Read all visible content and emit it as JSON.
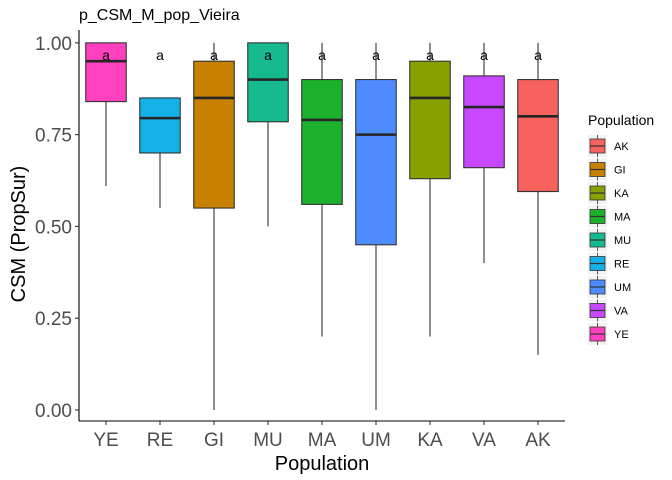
{
  "chart_data": {
    "type": "boxplot",
    "title": "p_CSM_M_pop_Vieira",
    "xlabel": "Population",
    "ylabel": "CSM (PropSur)",
    "ylim": [
      -0.03,
      1.035
    ],
    "yticks": [
      0.0,
      0.25,
      0.5,
      0.75,
      1.0
    ],
    "ytick_labels": [
      "0.00",
      "0.25",
      "0.50",
      "0.75",
      "1.00"
    ],
    "categories": [
      "YE",
      "RE",
      "GI",
      "MU",
      "MA",
      "UM",
      "KA",
      "VA",
      "AK"
    ],
    "boxes": [
      {
        "category": "YE",
        "min": 0.61,
        "q1": 0.84,
        "median": 0.95,
        "q3": 1.0,
        "max": 1.0,
        "color": "#FF40BF",
        "sig": "a"
      },
      {
        "category": "RE",
        "min": 0.55,
        "q1": 0.7,
        "median": 0.795,
        "q3": 0.85,
        "max": 0.85,
        "color": "#14B1E6",
        "sig": "a"
      },
      {
        "category": "GI",
        "min": 0.0,
        "q1": 0.55,
        "median": 0.85,
        "q3": 0.95,
        "max": 1.0,
        "color": "#C88000",
        "sig": "a"
      },
      {
        "category": "MU",
        "min": 0.5,
        "q1": 0.785,
        "median": 0.9,
        "q3": 1.0,
        "max": 1.0,
        "color": "#16BA8E",
        "sig": "a"
      },
      {
        "category": "MA",
        "min": 0.2,
        "q1": 0.56,
        "median": 0.79,
        "q3": 0.9,
        "max": 1.0,
        "color": "#1BB12D",
        "sig": "a"
      },
      {
        "category": "UM",
        "min": 0.0,
        "q1": 0.45,
        "median": 0.75,
        "q3": 0.9,
        "max": 1.0,
        "color": "#4E8BFF",
        "sig": "a"
      },
      {
        "category": "KA",
        "min": 0.2,
        "q1": 0.63,
        "median": 0.85,
        "q3": 0.95,
        "max": 1.0,
        "color": "#88A101",
        "sig": "a"
      },
      {
        "category": "VA",
        "min": 0.4,
        "q1": 0.66,
        "median": 0.825,
        "q3": 0.91,
        "max": 1.0,
        "color": "#C848FF",
        "sig": "a"
      },
      {
        "category": "AK",
        "min": 0.15,
        "q1": 0.595,
        "median": 0.8,
        "q3": 0.9,
        "max": 1.0,
        "color": "#F7625E",
        "sig": "a"
      }
    ],
    "legend": {
      "title": "Population",
      "placement": "right",
      "items": [
        {
          "label": "AK",
          "color": "#F7625E"
        },
        {
          "label": "GI",
          "color": "#C88000"
        },
        {
          "label": "KA",
          "color": "#88A101"
        },
        {
          "label": "MA",
          "color": "#1BB12D"
        },
        {
          "label": "MU",
          "color": "#16BA8E"
        },
        {
          "label": "RE",
          "color": "#14B1E6"
        },
        {
          "label": "UM",
          "color": "#4E8BFF"
        },
        {
          "label": "VA",
          "color": "#C848FF"
        },
        {
          "label": "YE",
          "color": "#FF40BF"
        }
      ]
    },
    "grid": false
  }
}
